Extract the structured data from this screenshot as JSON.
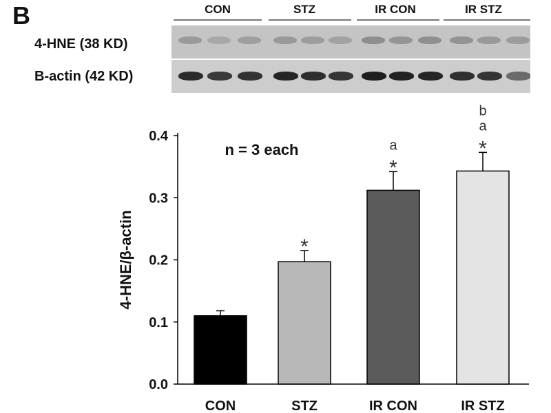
{
  "panel_label": "B",
  "blot": {
    "lane_groups": [
      "CON",
      "STZ",
      "IR CON",
      "IR STZ"
    ],
    "rows": [
      {
        "label": "4-HNE (38 KD)"
      },
      {
        "label": "B-actin (42 KD)"
      }
    ]
  },
  "chart_data": {
    "type": "bar",
    "categories": [
      "CON",
      "STZ",
      "IR CON",
      "IR STZ"
    ],
    "values": [
      0.11,
      0.197,
      0.312,
      0.343
    ],
    "errors": [
      0.008,
      0.018,
      0.03,
      0.03
    ],
    "ylabel": "4-HNE/β-actin",
    "ylim": [
      0.0,
      0.4
    ],
    "yticks": [
      "0.0",
      "0.1",
      "0.2",
      "0.3",
      "0.4"
    ],
    "annotation": "n = 3 each",
    "significance_labels": [
      [],
      [
        "*"
      ],
      [
        "a",
        "*"
      ],
      [
        "b",
        "a",
        "*"
      ]
    ],
    "bar_colors": [
      "#000000",
      "#b8b8b8",
      "#5a5a5a",
      "#e4e4e4"
    ]
  }
}
